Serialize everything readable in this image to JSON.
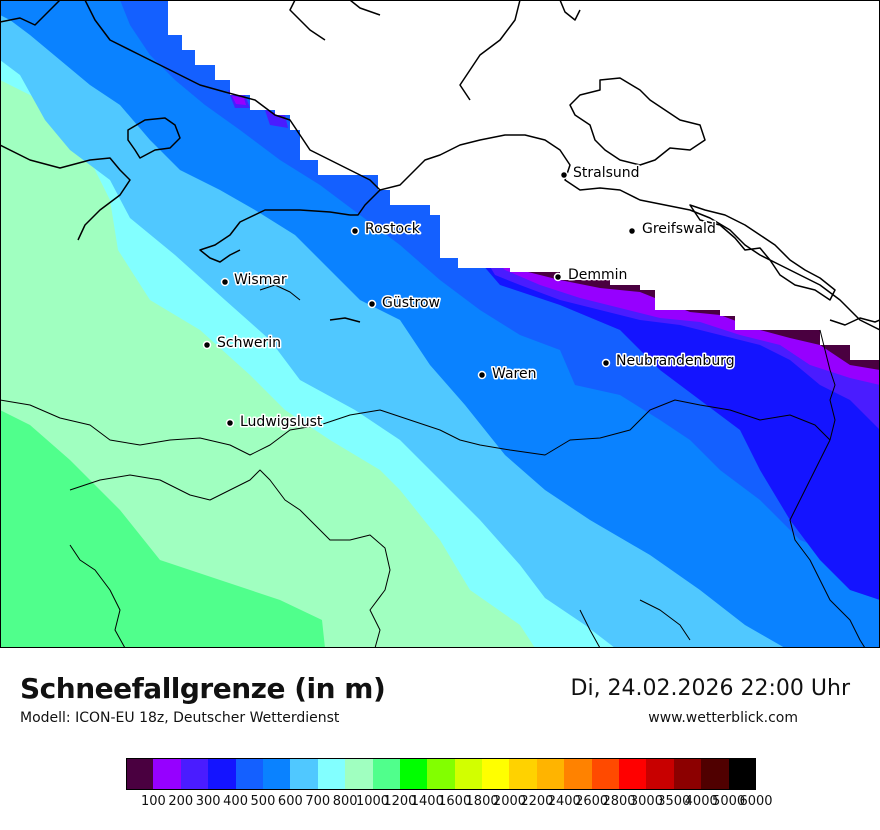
{
  "title": "Schneefallgrenze (in m)",
  "model": "Modell: ICON-EU 18z, Deutscher Wetterdienst",
  "datetime": "Di, 24.02.2026 22:00 Uhr",
  "website": "www.wetterblick.com",
  "cities": [
    {
      "name": "Stralsund"
    },
    {
      "name": "Rostock"
    },
    {
      "name": "Greifswald"
    },
    {
      "name": "Demmin"
    },
    {
      "name": "Wismar"
    },
    {
      "name": "Güstrow"
    },
    {
      "name": "Schwerin"
    },
    {
      "name": "Neubrandenburg"
    },
    {
      "name": "Waren"
    },
    {
      "name": "Ludwigslust"
    }
  ],
  "legend": {
    "labels": [
      "100",
      "200",
      "300",
      "400",
      "500",
      "600",
      "700",
      "800",
      "1000",
      "1200",
      "1400",
      "1600",
      "1800",
      "2000",
      "2200",
      "2400",
      "2600",
      "2800",
      "3000",
      "3500",
      "4000",
      "5000",
      "6000"
    ],
    "colors": [
      "#4a0040",
      "#9600ff",
      "#4a1cff",
      "#1414ff",
      "#1460ff",
      "#0a82ff",
      "#50c8ff",
      "#82ffff",
      "#a0ffc0",
      "#50ff8c",
      "#00ff00",
      "#82ff00",
      "#d2ff00",
      "#ffff00",
      "#ffd200",
      "#ffb400",
      "#ff8200",
      "#ff4a00",
      "#ff0000",
      "#c80000",
      "#8c0000",
      "#500000",
      "#000000"
    ]
  }
}
